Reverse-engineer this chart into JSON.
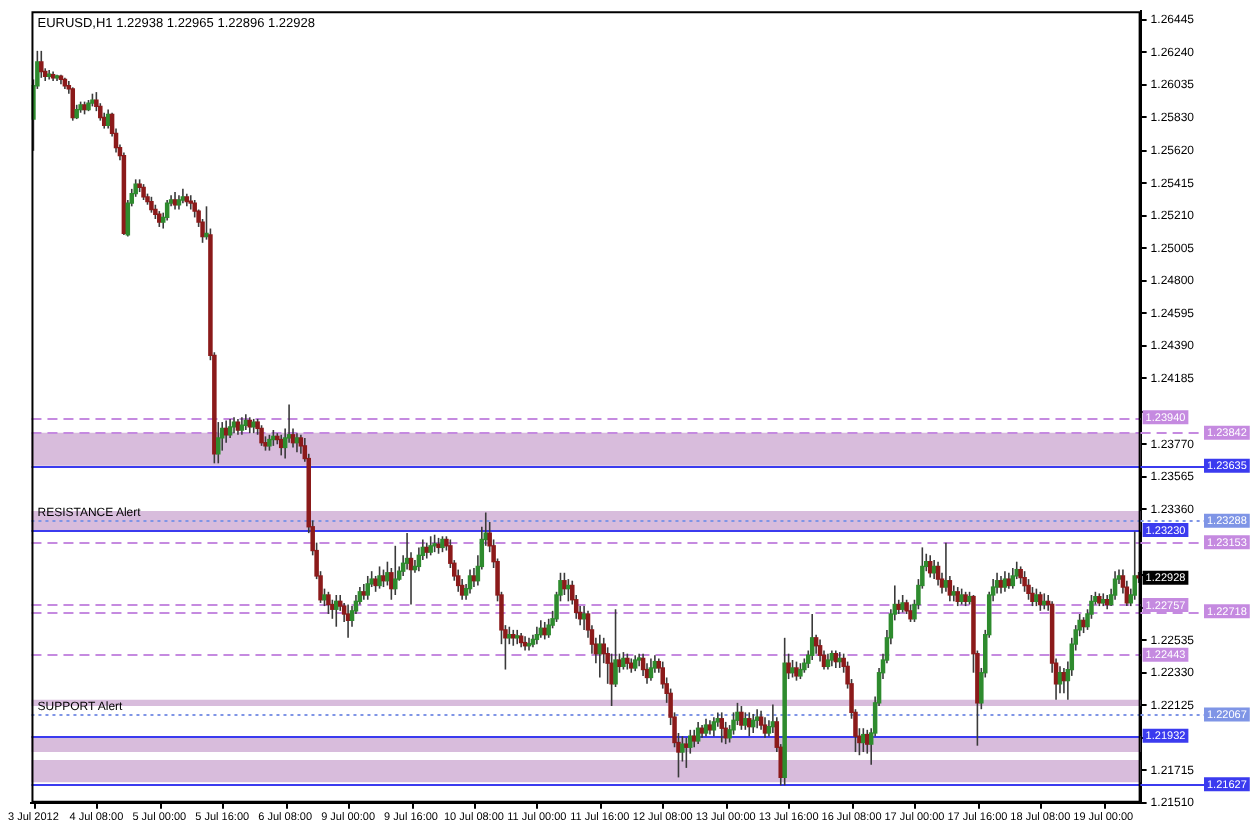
{
  "chart_data": {
    "type": "candlestick",
    "title": "EURUSD,H1 1.22938 1.22965 1.22896 1.22928",
    "categories": [
      "3 Jul 2012",
      null,
      null,
      null,
      null,
      null,
      null,
      null,
      null,
      null,
      null,
      null,
      null,
      null,
      null,
      null,
      "4 Jul 08:00",
      null,
      null,
      null,
      null,
      null,
      null,
      null,
      null,
      null,
      null,
      null,
      null,
      null,
      null,
      null,
      "5 Jul 00:00",
      null,
      null,
      null,
      null,
      null,
      null,
      null,
      null,
      null,
      null,
      null,
      null,
      null,
      null,
      null,
      "5 Jul 16:00",
      null,
      null,
      null,
      null,
      null,
      null,
      null,
      null,
      null,
      null,
      null,
      null,
      null,
      null,
      null,
      "6 Jul 08:00",
      null,
      null,
      null,
      null,
      null,
      null,
      null,
      null,
      null,
      null,
      null,
      null,
      null,
      null,
      null,
      "9 Jul 00:00",
      null,
      null,
      null,
      null,
      null,
      null,
      null,
      null,
      null,
      null,
      null,
      null,
      null,
      null,
      null,
      "9 Jul 16:00",
      null,
      null,
      null,
      null,
      null,
      null,
      null,
      null,
      null,
      null,
      null,
      null,
      null,
      null,
      null,
      "10 Jul 08:00",
      null,
      null,
      null,
      null,
      null,
      null,
      null,
      null,
      null,
      null,
      null,
      null,
      null,
      null,
      null,
      "11 Jul 00:00",
      null,
      null,
      null,
      null,
      null,
      null,
      null,
      null,
      null,
      null,
      null,
      null,
      null,
      null,
      null,
      "11 Jul 16:00",
      null,
      null,
      null,
      null,
      null,
      null,
      null,
      null,
      null,
      null,
      null,
      null,
      null,
      null,
      null,
      "12 Jul 08:00",
      null,
      null,
      null,
      null,
      null,
      null,
      null,
      null,
      null,
      null,
      null,
      null,
      null,
      null,
      null,
      "13 Jul 00:00",
      null,
      null,
      null,
      null,
      null,
      null,
      null,
      null,
      null,
      null,
      null,
      null,
      null,
      null,
      null,
      "13 Jul 16:00",
      null,
      null,
      null,
      null,
      null,
      null,
      null,
      null,
      null,
      null,
      null,
      null,
      null,
      null,
      null,
      "16 Jul 08:00",
      null,
      null,
      null,
      null,
      null,
      null,
      null,
      null,
      null,
      null,
      null,
      null,
      null,
      null,
      null,
      "17 Jul 00:00",
      null,
      null,
      null,
      null,
      null,
      null,
      null,
      null,
      null,
      null,
      null,
      null,
      null,
      null,
      null,
      "17 Jul 16:00",
      null,
      null,
      null,
      null,
      null,
      null,
      null,
      null,
      null,
      null,
      null,
      null,
      null,
      null,
      null,
      "18 Jul 08:00",
      null,
      null,
      null,
      null,
      null,
      null,
      null,
      null,
      null,
      null,
      null,
      null,
      null,
      null,
      null,
      "19 Jul 00:00",
      null,
      null,
      null,
      null,
      null,
      null,
      null,
      null,
      null
    ],
    "ohlc": [
      [
        1.2582,
        1.2607,
        1.2562,
        1.2603
      ],
      [
        1.2603,
        1.2625,
        1.2601,
        1.2618
      ],
      [
        1.2618,
        1.2625,
        1.2608,
        1.2612
      ],
      [
        1.2612,
        1.2614,
        1.2606,
        1.2609
      ],
      [
        1.2609,
        1.2613,
        1.2607,
        1.261
      ],
      [
        1.261,
        1.2612,
        1.2606,
        1.2608
      ],
      [
        1.2608,
        1.261,
        1.2606,
        1.2609
      ],
      [
        1.2609,
        1.261,
        1.2604,
        1.2607
      ],
      [
        1.2607,
        1.2608,
        1.2601,
        1.2603
      ],
      [
        1.2603,
        1.2606,
        1.2598,
        1.2601
      ],
      [
        1.2601,
        1.2602,
        1.2581,
        1.2583
      ],
      [
        1.2583,
        1.2591,
        1.2582,
        1.2588
      ],
      [
        1.2588,
        1.2593,
        1.2586,
        1.2591
      ],
      [
        1.2591,
        1.2593,
        1.2585,
        1.2588
      ],
      [
        1.2588,
        1.2594,
        1.2587,
        1.2592
      ],
      [
        1.2592,
        1.2598,
        1.259,
        1.2594
      ],
      [
        1.2594,
        1.2599,
        1.2587,
        1.259
      ],
      [
        1.259,
        1.2592,
        1.2581,
        1.2583
      ],
      [
        1.2583,
        1.2586,
        1.2576,
        1.2578
      ],
      [
        1.2578,
        1.2588,
        1.2576,
        1.2585
      ],
      [
        1.2585,
        1.2586,
        1.2571,
        1.2573
      ],
      [
        1.2573,
        1.2576,
        1.2561,
        1.2564
      ],
      [
        1.2564,
        1.2566,
        1.2556,
        1.2559
      ],
      [
        1.2559,
        1.2561,
        1.2509,
        1.251
      ],
      [
        1.2509,
        1.2531,
        1.2508,
        1.2529
      ],
      [
        1.2529,
        1.2538,
        1.2527,
        1.2535
      ],
      [
        1.2535,
        1.2544,
        1.2533,
        1.2541
      ],
      [
        1.2541,
        1.2544,
        1.2536,
        1.2539
      ],
      [
        1.2539,
        1.2541,
        1.2531,
        1.2533
      ],
      [
        1.2533,
        1.2535,
        1.2528,
        1.253
      ],
      [
        1.253,
        1.2533,
        1.2523,
        1.2525
      ],
      [
        1.2525,
        1.2528,
        1.2519,
        1.2522
      ],
      [
        1.2522,
        1.2524,
        1.2514,
        1.2517
      ],
      [
        1.2517,
        1.2523,
        1.2513,
        1.252
      ],
      [
        1.252,
        1.2531,
        1.2518,
        1.2529
      ],
      [
        1.2529,
        1.2534,
        1.2527,
        1.2531
      ],
      [
        1.2531,
        1.2536,
        1.2525,
        1.2528
      ],
      [
        1.2528,
        1.2534,
        1.2525,
        1.2531
      ],
      [
        1.2531,
        1.2538,
        1.2529,
        1.2533
      ],
      [
        1.2533,
        1.2535,
        1.2527,
        1.253
      ],
      [
        1.253,
        1.2534,
        1.2525,
        1.2529
      ],
      [
        1.2529,
        1.2531,
        1.252,
        1.2524
      ],
      [
        1.2524,
        1.2525,
        1.2514,
        1.2517
      ],
      [
        1.2517,
        1.2519,
        1.2504,
        1.2508
      ],
      [
        1.2508,
        1.2527,
        1.2506,
        1.251
      ],
      [
        1.2509,
        1.2513,
        1.243,
        1.2433
      ],
      [
        1.2433,
        1.2435,
        1.2365,
        1.2371
      ],
      [
        1.2371,
        1.2391,
        1.2365,
        1.2381
      ],
      [
        1.2381,
        1.2391,
        1.2373,
        1.2387
      ],
      [
        1.2387,
        1.2392,
        1.2378,
        1.2383
      ],
      [
        1.2383,
        1.2393,
        1.2381,
        1.2388
      ],
      [
        1.2388,
        1.2394,
        1.2384,
        1.2391
      ],
      [
        1.2391,
        1.2393,
        1.2383,
        1.2386
      ],
      [
        1.2386,
        1.2394,
        1.2383,
        1.2389
      ],
      [
        1.2389,
        1.2396,
        1.2386,
        1.2392
      ],
      [
        1.2392,
        1.2394,
        1.2384,
        1.2388
      ],
      [
        1.2388,
        1.2393,
        1.2384,
        1.2391
      ],
      [
        1.2391,
        1.2393,
        1.2383,
        1.2387
      ],
      [
        1.2387,
        1.2389,
        1.2376,
        1.2378
      ],
      [
        1.2378,
        1.2382,
        1.2373,
        1.2376
      ],
      [
        1.2376,
        1.2383,
        1.2373,
        1.238
      ],
      [
        1.238,
        1.2386,
        1.2376,
        1.2382
      ],
      [
        1.2382,
        1.2384,
        1.2377,
        1.238
      ],
      [
        1.238,
        1.2383,
        1.237,
        1.2375
      ],
      [
        1.2375,
        1.2387,
        1.2368,
        1.2381
      ],
      [
        1.2381,
        1.2402,
        1.2378,
        1.2383
      ],
      [
        1.2383,
        1.2387,
        1.2375,
        1.2378
      ],
      [
        1.2378,
        1.2384,
        1.2372,
        1.2381
      ],
      [
        1.2381,
        1.2383,
        1.2371,
        1.2376
      ],
      [
        1.2376,
        1.2381,
        1.2366,
        1.2368
      ],
      [
        1.2368,
        1.2371,
        1.2321,
        1.2325
      ],
      [
        1.2325,
        1.2329,
        1.2307,
        1.231
      ],
      [
        1.231,
        1.2315,
        1.2292,
        1.2294
      ],
      [
        1.2294,
        1.2297,
        1.2277,
        1.2279
      ],
      [
        1.2279,
        1.2286,
        1.2275,
        1.2282
      ],
      [
        1.2282,
        1.2284,
        1.227,
        1.2276
      ],
      [
        1.2276,
        1.2279,
        1.2267,
        1.2273
      ],
      [
        1.2273,
        1.2282,
        1.2262,
        1.2278
      ],
      [
        1.2278,
        1.2282,
        1.2272,
        1.2275
      ],
      [
        1.2275,
        1.2277,
        1.2265,
        1.227
      ],
      [
        1.227,
        1.2276,
        1.2255,
        1.2266
      ],
      [
        1.2266,
        1.2275,
        1.2262,
        1.2272
      ],
      [
        1.2272,
        1.2282,
        1.227,
        1.2278
      ],
      [
        1.2278,
        1.2287,
        1.2276,
        1.2284
      ],
      [
        1.2284,
        1.2289,
        1.2279,
        1.2282
      ],
      [
        1.2282,
        1.2294,
        1.2279,
        1.2289
      ],
      [
        1.2289,
        1.2297,
        1.2287,
        1.2292
      ],
      [
        1.2292,
        1.2294,
        1.2284,
        1.2288
      ],
      [
        1.2288,
        1.23,
        1.2286,
        1.2294
      ],
      [
        1.2294,
        1.2298,
        1.2287,
        1.2291
      ],
      [
        1.2291,
        1.2303,
        1.2288,
        1.2296
      ],
      [
        1.2296,
        1.2299,
        1.2279,
        1.2286
      ],
      [
        1.2286,
        1.2313,
        1.2282,
        1.2292
      ],
      [
        1.2292,
        1.23,
        1.2291,
        1.2297
      ],
      [
        1.2297,
        1.2307,
        1.2294,
        1.2302
      ],
      [
        1.2302,
        1.2321,
        1.2298,
        1.2305
      ],
      [
        1.2305,
        1.2309,
        1.2276,
        1.2298
      ],
      [
        1.2298,
        1.2304,
        1.2296,
        1.23
      ],
      [
        1.23,
        1.2312,
        1.2297,
        1.2307
      ],
      [
        1.2307,
        1.2317,
        1.2304,
        1.2312
      ],
      [
        1.2312,
        1.2315,
        1.2305,
        1.2309
      ],
      [
        1.2309,
        1.2319,
        1.2307,
        1.2313
      ],
      [
        1.2313,
        1.232,
        1.2309,
        1.2314
      ],
      [
        1.2314,
        1.2318,
        1.2308,
        1.2312
      ],
      [
        1.2312,
        1.2319,
        1.2309,
        1.2317
      ],
      [
        1.2317,
        1.2319,
        1.231,
        1.2313
      ],
      [
        1.2313,
        1.2317,
        1.2299,
        1.2302
      ],
      [
        1.2302,
        1.2304,
        1.2291,
        1.2294
      ],
      [
        1.2294,
        1.2298,
        1.2284,
        1.2288
      ],
      [
        1.2288,
        1.2292,
        1.2279,
        1.2282
      ],
      [
        1.2282,
        1.2289,
        1.2279,
        1.2286
      ],
      [
        1.2286,
        1.2298,
        1.2283,
        1.2294
      ],
      [
        1.2294,
        1.2299,
        1.2287,
        1.2291
      ],
      [
        1.2291,
        1.2307,
        1.2288,
        1.23
      ],
      [
        1.23,
        1.2325,
        1.2298,
        1.2317
      ],
      [
        1.2317,
        1.2334,
        1.2313,
        1.2321
      ],
      [
        1.2321,
        1.2328,
        1.2309,
        1.2313
      ],
      [
        1.2313,
        1.2317,
        1.2299,
        1.2303
      ],
      [
        1.2303,
        1.2305,
        1.2278,
        1.2282
      ],
      [
        1.2282,
        1.2284,
        1.2251,
        1.226
      ],
      [
        1.226,
        1.2263,
        1.2235,
        1.2255
      ],
      [
        1.2255,
        1.2262,
        1.2251,
        1.2257
      ],
      [
        1.2257,
        1.226,
        1.225,
        1.2255
      ],
      [
        1.2255,
        1.226,
        1.2251,
        1.2256
      ],
      [
        1.2256,
        1.2258,
        1.2249,
        1.2252
      ],
      [
        1.2252,
        1.2256,
        1.2247,
        1.225
      ],
      [
        1.225,
        1.2255,
        1.2247,
        1.2251
      ],
      [
        1.2251,
        1.2257,
        1.2249,
        1.2254
      ],
      [
        1.2254,
        1.2262,
        1.2251,
        1.2257
      ],
      [
        1.2257,
        1.2266,
        1.2255,
        1.2261
      ],
      [
        1.2261,
        1.2265,
        1.2254,
        1.2257
      ],
      [
        1.2257,
        1.2267,
        1.2255,
        1.2263
      ],
      [
        1.2263,
        1.2272,
        1.2261,
        1.2267
      ],
      [
        1.2267,
        1.2284,
        1.2265,
        1.2282
      ],
      [
        1.2282,
        1.2296,
        1.2278,
        1.2291
      ],
      [
        1.2291,
        1.2296,
        1.2282,
        1.2286
      ],
      [
        1.2286,
        1.2292,
        1.2278,
        1.2288
      ],
      [
        1.2288,
        1.2291,
        1.2276,
        1.2279
      ],
      [
        1.2279,
        1.2282,
        1.2267,
        1.2271
      ],
      [
        1.2271,
        1.2275,
        1.2263,
        1.2267
      ],
      [
        1.2267,
        1.2275,
        1.226,
        1.227
      ],
      [
        1.227,
        1.2272,
        1.2255,
        1.226
      ],
      [
        1.226,
        1.2263,
        1.2245,
        1.2251
      ],
      [
        1.2251,
        1.2255,
        1.2239,
        1.2245
      ],
      [
        1.2245,
        1.2257,
        1.223,
        1.2251
      ],
      [
        1.2251,
        1.2255,
        1.2239,
        1.2245
      ],
      [
        1.2245,
        1.2249,
        1.2226,
        1.2239
      ],
      [
        1.2239,
        1.2245,
        1.2212,
        1.2226
      ],
      [
        1.2226,
        1.2273,
        1.2224,
        1.2241
      ],
      [
        1.2241,
        1.2245,
        1.2233,
        1.2237
      ],
      [
        1.2237,
        1.2246,
        1.2235,
        1.2242
      ],
      [
        1.2242,
        1.2245,
        1.2235,
        1.2239
      ],
      [
        1.2239,
        1.2242,
        1.2233,
        1.2236
      ],
      [
        1.2236,
        1.2244,
        1.2234,
        1.2241
      ],
      [
        1.2241,
        1.2245,
        1.2237,
        1.2242
      ],
      [
        1.2242,
        1.2245,
        1.2231,
        1.2235
      ],
      [
        1.2235,
        1.2239,
        1.2226,
        1.223
      ],
      [
        1.223,
        1.2242,
        1.2228,
        1.2236
      ],
      [
        1.2236,
        1.2244,
        1.2233,
        1.224
      ],
      [
        1.224,
        1.2242,
        1.2233,
        1.2236
      ],
      [
        1.2236,
        1.224,
        1.2223,
        1.2226
      ],
      [
        1.2226,
        1.223,
        1.2214,
        1.222
      ],
      [
        1.222,
        1.2223,
        1.22,
        1.2205
      ],
      [
        1.2205,
        1.2208,
        1.2186,
        1.2189
      ],
      [
        1.2189,
        1.2195,
        1.2167,
        1.2183
      ],
      [
        1.2183,
        1.2193,
        1.2177,
        1.2188
      ],
      [
        1.2188,
        1.2192,
        1.2173,
        1.2186
      ],
      [
        1.2186,
        1.2197,
        1.2182,
        1.2193
      ],
      [
        1.2193,
        1.2197,
        1.2186,
        1.219
      ],
      [
        1.219,
        1.2202,
        1.2188,
        1.2198
      ],
      [
        1.2198,
        1.22,
        1.2192,
        1.2195
      ],
      [
        1.2195,
        1.2204,
        1.2193,
        1.22
      ],
      [
        1.22,
        1.2203,
        1.2194,
        1.2197
      ],
      [
        1.2197,
        1.2205,
        1.2193,
        1.2202
      ],
      [
        1.2202,
        1.2208,
        1.2199,
        1.2204
      ],
      [
        1.2204,
        1.2208,
        1.2189,
        1.2198
      ],
      [
        1.2198,
        1.2202,
        1.2188,
        1.2192
      ],
      [
        1.2192,
        1.22,
        1.2189,
        1.2197
      ],
      [
        1.2197,
        1.2208,
        1.2194,
        1.2203
      ],
      [
        1.2203,
        1.2214,
        1.22,
        1.2208
      ],
      [
        1.2208,
        1.2212,
        1.2197,
        1.22
      ],
      [
        1.22,
        1.2208,
        1.2197,
        1.2204
      ],
      [
        1.2204,
        1.2208,
        1.2193,
        1.2199
      ],
      [
        1.2199,
        1.2207,
        1.2195,
        1.2203
      ],
      [
        1.2203,
        1.221,
        1.2198,
        1.2205
      ],
      [
        1.2205,
        1.2209,
        1.2197,
        1.22
      ],
      [
        1.22,
        1.2205,
        1.2192,
        1.2195
      ],
      [
        1.2195,
        1.2203,
        1.2193,
        1.2199
      ],
      [
        1.2199,
        1.2213,
        1.2195,
        1.2202
      ],
      [
        1.2202,
        1.2205,
        1.2183,
        1.2186
      ],
      [
        1.2186,
        1.2188,
        1.2162,
        1.2167
      ],
      [
        1.2167,
        1.2255,
        1.2162,
        1.2239
      ],
      [
        1.2239,
        1.2245,
        1.2229,
        1.2233
      ],
      [
        1.2233,
        1.2241,
        1.223,
        1.2236
      ],
      [
        1.2236,
        1.224,
        1.2228,
        1.2231
      ],
      [
        1.2231,
        1.2239,
        1.2229,
        1.2235
      ],
      [
        1.2235,
        1.2242,
        1.2233,
        1.2239
      ],
      [
        1.2239,
        1.2247,
        1.2236,
        1.2244
      ],
      [
        1.2244,
        1.227,
        1.2241,
        1.2255
      ],
      [
        1.2255,
        1.2257,
        1.2245,
        1.225
      ],
      [
        1.225,
        1.2254,
        1.224,
        1.2244
      ],
      [
        1.2244,
        1.2247,
        1.2235,
        1.2237
      ],
      [
        1.2237,
        1.2245,
        1.2235,
        1.2241
      ],
      [
        1.2241,
        1.2247,
        1.2237,
        1.2245
      ],
      [
        1.2245,
        1.2247,
        1.2236,
        1.224
      ],
      [
        1.224,
        1.2246,
        1.2236,
        1.2242
      ],
      [
        1.2242,
        1.2245,
        1.2233,
        1.2237
      ],
      [
        1.2237,
        1.224,
        1.2223,
        1.2226
      ],
      [
        1.2226,
        1.2229,
        1.2204,
        1.2208
      ],
      [
        1.2208,
        1.221,
        1.2183,
        1.2193
      ],
      [
        1.2193,
        1.2198,
        1.2181,
        1.2189
      ],
      [
        1.2189,
        1.2198,
        1.2183,
        1.2194
      ],
      [
        1.2194,
        1.2197,
        1.2182,
        1.2188
      ],
      [
        1.2188,
        1.2198,
        1.2175,
        1.2195
      ],
      [
        1.2195,
        1.2218,
        1.2193,
        1.2214
      ],
      [
        1.2214,
        1.2236,
        1.2212,
        1.2233
      ],
      [
        1.2233,
        1.2245,
        1.2229,
        1.2241
      ],
      [
        1.2241,
        1.226,
        1.2239,
        1.2255
      ],
      [
        1.2255,
        1.2273,
        1.2251,
        1.227
      ],
      [
        1.227,
        1.2288,
        1.2266,
        1.2276
      ],
      [
        1.2276,
        1.2279,
        1.227,
        1.2273
      ],
      [
        1.2273,
        1.2282,
        1.2271,
        1.2277
      ],
      [
        1.2277,
        1.2279,
        1.227,
        1.2272
      ],
      [
        1.2272,
        1.2276,
        1.2265,
        1.2267
      ],
      [
        1.2267,
        1.2279,
        1.2265,
        1.2276
      ],
      [
        1.2276,
        1.2292,
        1.2273,
        1.2288
      ],
      [
        1.2288,
        1.2312,
        1.2286,
        1.23
      ],
      [
        1.23,
        1.2308,
        1.2297,
        1.2303
      ],
      [
        1.2303,
        1.2307,
        1.2293,
        1.2296
      ],
      [
        1.2296,
        1.2304,
        1.2292,
        1.23
      ],
      [
        1.23,
        1.2303,
        1.2288,
        1.2292
      ],
      [
        1.2292,
        1.2296,
        1.2283,
        1.2287
      ],
      [
        1.2287,
        1.2315,
        1.2284,
        1.2291
      ],
      [
        1.2291,
        1.2294,
        1.2278,
        1.2282
      ],
      [
        1.2282,
        1.2288,
        1.2278,
        1.2284
      ],
      [
        1.2284,
        1.2287,
        1.2275,
        1.2278
      ],
      [
        1.2278,
        1.2286,
        1.2276,
        1.2282
      ],
      [
        1.2282,
        1.2284,
        1.2275,
        1.2278
      ],
      [
        1.2278,
        1.2284,
        1.2276,
        1.2281
      ],
      [
        1.2281,
        1.2282,
        1.2233,
        1.2245
      ],
      [
        1.2245,
        1.2247,
        1.2187,
        1.2214
      ],
      [
        1.2214,
        1.2236,
        1.221,
        1.2233
      ],
      [
        1.2233,
        1.226,
        1.223,
        1.2257
      ],
      [
        1.2257,
        1.2284,
        1.2255,
        1.2282
      ],
      [
        1.2282,
        1.2292,
        1.2278,
        1.2287
      ],
      [
        1.2287,
        1.2296,
        1.2283,
        1.2291
      ],
      [
        1.2291,
        1.2294,
        1.2283,
        1.2287
      ],
      [
        1.2287,
        1.2297,
        1.2284,
        1.2292
      ],
      [
        1.2292,
        1.2296,
        1.2286,
        1.2288
      ],
      [
        1.2288,
        1.2299,
        1.2286,
        1.2294
      ],
      [
        1.2294,
        1.2303,
        1.2292,
        1.2298
      ],
      [
        1.2298,
        1.23,
        1.2289,
        1.2293
      ],
      [
        1.2293,
        1.2297,
        1.2284,
        1.2288
      ],
      [
        1.2288,
        1.2292,
        1.2279,
        1.2283
      ],
      [
        1.2283,
        1.2287,
        1.2275,
        1.2278
      ],
      [
        1.2278,
        1.2286,
        1.2275,
        1.2282
      ],
      [
        1.2282,
        1.2284,
        1.2272,
        1.2276
      ],
      [
        1.2276,
        1.2283,
        1.2273,
        1.2278
      ],
      [
        1.2278,
        1.2282,
        1.2272,
        1.2276
      ],
      [
        1.2276,
        1.2278,
        1.2233,
        1.2239
      ],
      [
        1.2239,
        1.2242,
        1.2216,
        1.2226
      ],
      [
        1.2226,
        1.2237,
        1.222,
        1.2233
      ],
      [
        1.2233,
        1.2236,
        1.222,
        1.2228
      ],
      [
        1.2228,
        1.224,
        1.2216,
        1.2235
      ],
      [
        1.2235,
        1.2255,
        1.2231,
        1.2251
      ],
      [
        1.2251,
        1.2263,
        1.2247,
        1.226
      ],
      [
        1.226,
        1.227,
        1.2256,
        1.2266
      ],
      [
        1.2266,
        1.2268,
        1.2258,
        1.2262
      ],
      [
        1.2262,
        1.2273,
        1.226,
        1.227
      ],
      [
        1.227,
        1.2282,
        1.2267,
        1.2278
      ],
      [
        1.2278,
        1.2284,
        1.2276,
        1.2281
      ],
      [
        1.2281,
        1.2283,
        1.2275,
        1.2277
      ],
      [
        1.2277,
        1.2283,
        1.2275,
        1.2279
      ],
      [
        1.2279,
        1.2282,
        1.2273,
        1.2276
      ],
      [
        1.2276,
        1.2286,
        1.2275,
        1.2282
      ],
      [
        1.2282,
        1.2297,
        1.2279,
        1.2292
      ],
      [
        1.2292,
        1.2298,
        1.2289,
        1.2294
      ],
      [
        1.2294,
        1.2298,
        1.2283,
        1.2287
      ],
      [
        1.2287,
        1.2291,
        1.2275,
        1.2277
      ],
      [
        1.2277,
        1.2286,
        1.2275,
        1.2282
      ],
      [
        1.2282,
        1.2322,
        1.2279,
        1.2294
      ],
      [
        1.22938,
        1.22965,
        1.22896,
        1.22928
      ]
    ],
    "value_labels": [
      null,
      null,
      null,
      null,
      null,
      null,
      null,
      null,
      null,
      null,
      null,
      null,
      null,
      null,
      null,
      null,
      null,
      null,
      null,
      null,
      null,
      null,
      null,
      null,
      null,
      null,
      null,
      null,
      null,
      null,
      null,
      null,
      null,
      null,
      null,
      null,
      null,
      null,
      null,
      null,
      null,
      null,
      null,
      null,
      null,
      null,
      null,
      null,
      null,
      null,
      null,
      null,
      null,
      null,
      null,
      null,
      null,
      null,
      null,
      null,
      null,
      null,
      null,
      null,
      null,
      null,
      null,
      null,
      null,
      null,
      null,
      null,
      null,
      null,
      null,
      null,
      null,
      null,
      null,
      null,
      null,
      null,
      null,
      null,
      null,
      null,
      null,
      null,
      null,
      null,
      null,
      null,
      null,
      null,
      null,
      null,
      null,
      null,
      null,
      null,
      null,
      null,
      null,
      null,
      null,
      null,
      null,
      null,
      null,
      null,
      null,
      null,
      null,
      null,
      null,
      null,
      null,
      null,
      null,
      null,
      null,
      null,
      null,
      null,
      null,
      null,
      null,
      null,
      null,
      null,
      null,
      null,
      null,
      null,
      null,
      null,
      null,
      null,
      null,
      null,
      null,
      null,
      null,
      null,
      null,
      null,
      null,
      null,
      null,
      null,
      null,
      null,
      null,
      null,
      null,
      null,
      null,
      null,
      null,
      null,
      null,
      null,
      null,
      null,
      null,
      null,
      null,
      null,
      null,
      null,
      null,
      null,
      null,
      null,
      null,
      null,
      null,
      null,
      null,
      null,
      null,
      null,
      null,
      null,
      null,
      null,
      null,
      null,
      null,
      null,
      null,
      null,
      null,
      null,
      null,
      null,
      null,
      null,
      null,
      null,
      null,
      null,
      null,
      null,
      null,
      null,
      null,
      null,
      null,
      null,
      null,
      null,
      null,
      null,
      null,
      null,
      null,
      null,
      null,
      null,
      null,
      null,
      null,
      null,
      null,
      null,
      null,
      null,
      null,
      null,
      null,
      null,
      null,
      null,
      null,
      null,
      null,
      null,
      null,
      null,
      null,
      null,
      null,
      null,
      null,
      null,
      null,
      null,
      null,
      null,
      null,
      null,
      null,
      null,
      null,
      null,
      null,
      null,
      null,
      null,
      null,
      null,
      null,
      null,
      null,
      null,
      null,
      null,
      null,
      null,
      null,
      null,
      null,
      null,
      null,
      null,
      null,
      null,
      null,
      null,
      null,
      "1.22928"
    ],
    "ylim": [
      1.2151,
      1.265
    ],
    "yticks": [
      {
        "value": 1.2151,
        "label": "1.21510"
      },
      1.21715,
      {
        "value": 1.2192,
        "label": null
      },
      1.22125,
      {
        "value": 1.2233,
        "label": "1.22330"
      },
      1.22535,
      {
        "value": 1.2274,
        "label": null
      },
      {
        "value": 1.22945,
        "label": null
      },
      {
        "value": 1.2315,
        "label": null
      },
      {
        "value": 1.2336,
        "label": "1.23360"
      },
      1.23565,
      {
        "value": 1.2377,
        "label": "1.23770"
      },
      {
        "value": 1.23975,
        "label": null
      },
      1.24185,
      {
        "value": 1.2439,
        "label": "1.24390"
      },
      1.24595,
      {
        "value": 1.248,
        "label": "1.24800"
      },
      1.25005,
      {
        "value": 1.2521,
        "label": "1.25210"
      },
      1.25415,
      {
        "value": 1.2562,
        "label": "1.25620"
      },
      {
        "value": 1.2583,
        "label": "1.25830"
      },
      1.26035,
      {
        "value": 1.2624,
        "label": "1.26240"
      },
      1.26445
    ],
    "ref_lines": [
      {
        "axis": "y",
        "value": 1.2394,
        "label": "1.23940",
        "color": "#c58ae0",
        "line_style": "dashed"
      },
      {
        "axis": "y",
        "value": 1.23842,
        "label": "1.23842",
        "color": "#c58ae0",
        "line_style": "dashed"
      },
      {
        "axis": "y",
        "value": 1.23635,
        "label": "1.23635",
        "color": "#3b3bef",
        "line_style": "solid"
      },
      {
        "axis": "y",
        "value": 1.23288,
        "label": "1.23288",
        "color": "#7f95e6",
        "line_style": "dotted"
      },
      {
        "axis": "y",
        "value": 1.2323,
        "label": "1.23230",
        "color": "#3b3bef",
        "line_style": "solid"
      },
      {
        "axis": "y",
        "value": 1.23153,
        "label": "1.23153",
        "color": "#c58ae0",
        "line_style": "dashed"
      },
      {
        "axis": "y",
        "value": 1.22757,
        "label": "1.22757",
        "color": "#c58ae0",
        "line_style": "dashed"
      },
      {
        "axis": "y",
        "value": 1.22718,
        "label": "1.22718",
        "color": "#c58ae0",
        "line_style": "dashed"
      },
      {
        "axis": "y",
        "value": 1.22443,
        "label": "1.22443",
        "color": "#c58ae0",
        "line_style": "dashed"
      },
      {
        "axis": "y",
        "value": 1.22067,
        "label": "1.22067",
        "color": "#7f95e6",
        "line_style": "dotted"
      },
      {
        "axis": "y",
        "value": 1.21932,
        "label": "1.21932",
        "color": "#3b3bef",
        "line_style": "solid"
      },
      {
        "axis": "y",
        "value": 1.21627,
        "label": "1.21627",
        "color": "#3b3bef",
        "line_style": "solid"
      }
    ],
    "annotations": [
      {
        "text": "RESISTANCE Alert",
        "y": 1.23288
      },
      {
        "text": "SUPPORT Alert",
        "y": 1.22067
      }
    ],
    "bands": [
      {
        "axis": "y",
        "from": 1.23635,
        "to": 1.23842,
        "color": "#d8bcdc"
      },
      {
        "axis": "y",
        "from": 1.2322,
        "to": 1.2335,
        "color": "#d8bcdc"
      },
      {
        "axis": "y",
        "from": 1.2212,
        "to": 1.2216,
        "color": "#d8bcdc"
      },
      {
        "axis": "y",
        "from": 1.2183,
        "to": 1.2193,
        "color": "#d8bcdc"
      },
      {
        "axis": "y",
        "from": 1.2164,
        "to": 1.2178,
        "color": "#d8bcdc"
      }
    ]
  }
}
